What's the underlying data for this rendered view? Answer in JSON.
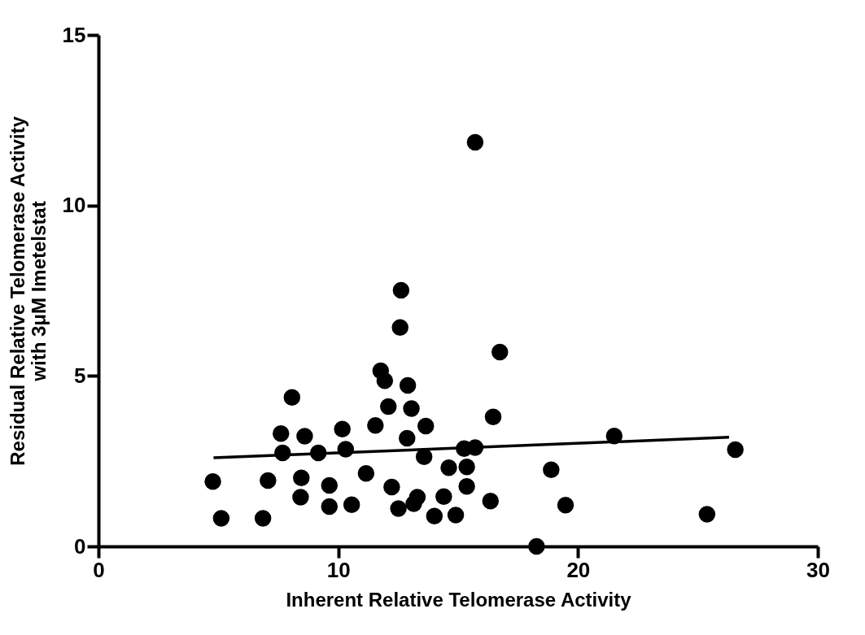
{
  "chart_data": {
    "type": "scatter",
    "xlabel": "Inherent  Relative Telomerase Activity",
    "ylabel": "Residual Relative Telomerase Activity\nwith 3μM Imetelstat",
    "xlim": [
      0,
      30
    ],
    "ylim": [
      0,
      15
    ],
    "xticks": [
      0,
      10,
      20,
      30
    ],
    "yticks": [
      0,
      5,
      10,
      15
    ],
    "grid": false,
    "series": [
      {
        "marker": "circle",
        "color": "#000000",
        "x": [
          4.77,
          5.12,
          6.86,
          7.07,
          7.61,
          7.68,
          8.07,
          8.6,
          8.46,
          8.43,
          9.17,
          9.63,
          9.63,
          10.17,
          10.31,
          10.56,
          11.16,
          11.55,
          11.77,
          11.94,
          12.09,
          12.23,
          12.51,
          12.58,
          12.62,
          12.9,
          13.05,
          12.87,
          13.65,
          13.58,
          13.3,
          13.15,
          14.01,
          14.4,
          14.61,
          14.9,
          15.25,
          15.36,
          15.36,
          15.71,
          15.71,
          16.46,
          16.35,
          16.74,
          18.27,
          18.88,
          19.48,
          21.51,
          25.38,
          26.56
        ],
        "values": [
          1.9,
          0.82,
          0.82,
          1.93,
          3.31,
          2.74,
          4.37,
          3.23,
          2.01,
          1.44,
          2.74,
          1.79,
          1.17,
          3.44,
          2.85,
          1.22,
          2.14,
          3.55,
          5.15,
          4.86,
          4.1,
          1.74,
          1.11,
          6.42,
          7.51,
          4.72,
          4.04,
          3.17,
          3.53,
          2.63,
          1.44,
          1.25,
          0.89,
          1.46,
          2.31,
          0.92,
          2.87,
          2.33,
          1.76,
          2.9,
          11.85,
          3.8,
          1.33,
          5.7,
          0,
          2.25,
          1.21,
          3.24,
          0.94,
          2.84
        ]
      },
      {
        "type": "line",
        "color": "#000000",
        "line_style": "solid",
        "x": [
          4.8,
          26.3
        ],
        "values": [
          2.6,
          3.2
        ]
      }
    ]
  }
}
